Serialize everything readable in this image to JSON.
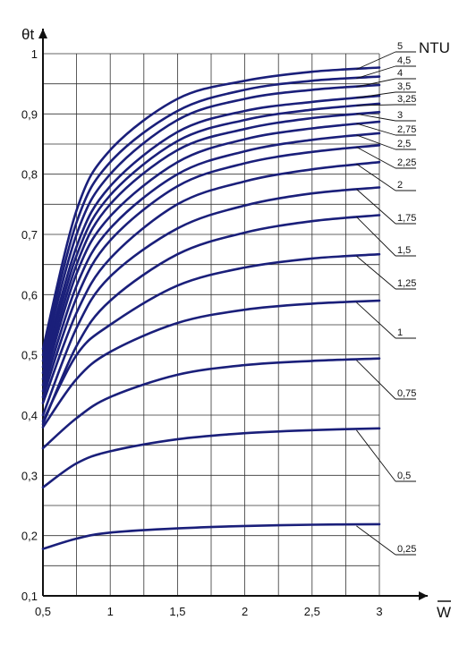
{
  "chart_data": {
    "type": "line",
    "title": "",
    "ylabel": "θt",
    "xlabel": "W",
    "legend_title": "NTU",
    "xlim": [
      0.5,
      3.0
    ],
    "ylim": [
      0.1,
      1.0
    ],
    "grid": true,
    "x_ticks": [
      0.5,
      1,
      1.5,
      2,
      2.5,
      3
    ],
    "x_tick_labels": [
      "0,5",
      "1",
      "1,5",
      "2",
      "2,5",
      "3"
    ],
    "y_ticks": [
      0.1,
      0.2,
      0.3,
      0.4,
      0.5,
      0.6,
      0.7,
      0.8,
      0.9,
      1.0
    ],
    "y_tick_labels": [
      "0,1",
      "0,2",
      "0,3",
      "0,4",
      "0,5",
      "0,6",
      "0,7",
      "0,8",
      "0,9",
      "1"
    ],
    "line_color": "#1a1f7a",
    "series": [
      {
        "name": "5",
        "x": [
          0.5,
          0.75,
          1,
          1.5,
          2,
          2.5,
          3
        ],
        "y": [
          0.51,
          0.74,
          0.84,
          0.925,
          0.955,
          0.97,
          0.977
        ]
      },
      {
        "name": "4,5",
        "x": [
          0.5,
          0.75,
          1,
          1.5,
          2,
          2.5,
          3
        ],
        "y": [
          0.5,
          0.72,
          0.82,
          0.905,
          0.94,
          0.955,
          0.962
        ]
      },
      {
        "name": "4",
        "x": [
          0.5,
          0.75,
          1,
          1.5,
          2,
          2.5,
          3
        ],
        "y": [
          0.49,
          0.7,
          0.8,
          0.89,
          0.925,
          0.94,
          0.948
        ]
      },
      {
        "name": "3,5",
        "x": [
          0.5,
          0.75,
          1,
          1.5,
          2,
          2.5,
          3
        ],
        "y": [
          0.48,
          0.68,
          0.78,
          0.87,
          0.905,
          0.92,
          0.93
        ]
      },
      {
        "name": "3,25",
        "x": [
          0.5,
          0.75,
          1,
          1.5,
          2,
          2.5,
          3
        ],
        "y": [
          0.47,
          0.665,
          0.765,
          0.855,
          0.89,
          0.907,
          0.917
        ]
      },
      {
        "name": "3",
        "x": [
          0.5,
          0.75,
          1,
          1.5,
          2,
          2.5,
          3
        ],
        "y": [
          0.46,
          0.65,
          0.75,
          0.84,
          0.875,
          0.893,
          0.903
        ]
      },
      {
        "name": "2,75",
        "x": [
          0.5,
          0.75,
          1,
          1.5,
          2,
          2.5,
          3
        ],
        "y": [
          0.45,
          0.635,
          0.73,
          0.82,
          0.858,
          0.876,
          0.887
        ]
      },
      {
        "name": "2,5",
        "x": [
          0.5,
          0.75,
          1,
          1.5,
          2,
          2.5,
          3
        ],
        "y": [
          0.44,
          0.615,
          0.71,
          0.8,
          0.838,
          0.857,
          0.868
        ]
      },
      {
        "name": "2,25",
        "x": [
          0.5,
          0.75,
          1,
          1.5,
          2,
          2.5,
          3
        ],
        "y": [
          0.43,
          0.595,
          0.69,
          0.78,
          0.818,
          0.837,
          0.848
        ]
      },
      {
        "name": "2",
        "x": [
          0.5,
          0.75,
          1,
          1.5,
          2,
          2.5,
          3
        ],
        "y": [
          0.42,
          0.57,
          0.66,
          0.75,
          0.788,
          0.808,
          0.82
        ]
      },
      {
        "name": "1,75",
        "x": [
          0.5,
          0.75,
          1,
          1.5,
          2,
          2.5,
          3
        ],
        "y": [
          0.4,
          0.545,
          0.63,
          0.71,
          0.748,
          0.768,
          0.778
        ]
      },
      {
        "name": "1,5",
        "x": [
          0.5,
          0.75,
          1,
          1.5,
          2,
          2.5,
          3
        ],
        "y": [
          0.385,
          0.515,
          0.59,
          0.667,
          0.703,
          0.722,
          0.732
        ]
      },
      {
        "name": "1,25",
        "x": [
          0.5,
          0.75,
          1,
          1.5,
          2,
          2.5,
          3
        ],
        "y": [
          0.39,
          0.5,
          0.55,
          0.615,
          0.645,
          0.66,
          0.667
        ]
      },
      {
        "name": "1",
        "x": [
          0.5,
          0.75,
          1,
          1.5,
          2,
          2.5,
          3
        ],
        "y": [
          0.38,
          0.46,
          0.505,
          0.553,
          0.575,
          0.585,
          0.59
        ]
      },
      {
        "name": "0,75",
        "x": [
          0.5,
          0.75,
          1,
          1.5,
          2,
          2.5,
          3
        ],
        "y": [
          0.345,
          0.395,
          0.43,
          0.467,
          0.483,
          0.49,
          0.494
        ]
      },
      {
        "name": "0,5",
        "x": [
          0.5,
          0.75,
          1,
          1.5,
          2,
          2.5,
          3
        ],
        "y": [
          0.28,
          0.32,
          0.34,
          0.36,
          0.37,
          0.375,
          0.378
        ]
      },
      {
        "name": "0,25",
        "x": [
          0.5,
          0.75,
          1,
          1.5,
          2,
          2.5,
          3
        ],
        "y": [
          0.178,
          0.195,
          0.205,
          0.212,
          0.216,
          0.218,
          0.219
        ]
      }
    ]
  }
}
